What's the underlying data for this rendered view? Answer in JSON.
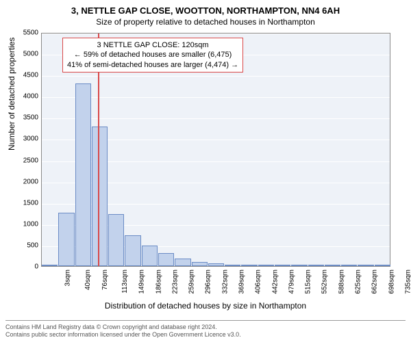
{
  "title_main": "3, NETTLE GAP CLOSE, WOOTTON, NORTHAMPTON, NN4 6AH",
  "title_sub": "Size of property relative to detached houses in Northampton",
  "ylabel": "Number of detached properties",
  "xlabel": "Distribution of detached houses by size in Northampton",
  "chart": {
    "type": "histogram",
    "ylim": [
      0,
      5500
    ],
    "ytick_step": 500,
    "yticks": [
      0,
      500,
      1000,
      1500,
      2000,
      2500,
      3000,
      3500,
      4000,
      4500,
      5000,
      5500
    ],
    "xticks": [
      "3sqm",
      "40sqm",
      "76sqm",
      "113sqm",
      "149sqm",
      "186sqm",
      "223sqm",
      "259sqm",
      "296sqm",
      "332sqm",
      "369sqm",
      "406sqm",
      "442sqm",
      "479sqm",
      "515sqm",
      "552sqm",
      "588sqm",
      "625sqm",
      "662sqm",
      "698sqm",
      "735sqm"
    ],
    "values": [
      0,
      1250,
      4300,
      3280,
      1220,
      720,
      490,
      300,
      170,
      100,
      60,
      40,
      25,
      15,
      10,
      8,
      5,
      3,
      2,
      1,
      0
    ],
    "bar_fill": "#c2d2ec",
    "bar_stroke": "#6a8bc5",
    "background_color": "#eef2f8",
    "grid_color": "#ffffff",
    "marker_value_x": 120,
    "marker_line_color": "#d94848"
  },
  "annotation": {
    "line1": "3 NETTLE GAP CLOSE: 120sqm",
    "line2": "← 59% of detached houses are smaller (6,475)",
    "line3": "41% of semi-detached houses are larger (4,474) →",
    "border_color": "#d94848",
    "font_size": 11
  },
  "footer": {
    "line1": "Contains HM Land Registry data © Crown copyright and database right 2024.",
    "line2": "Contains public sector information licensed under the Open Government Licence v3.0."
  }
}
